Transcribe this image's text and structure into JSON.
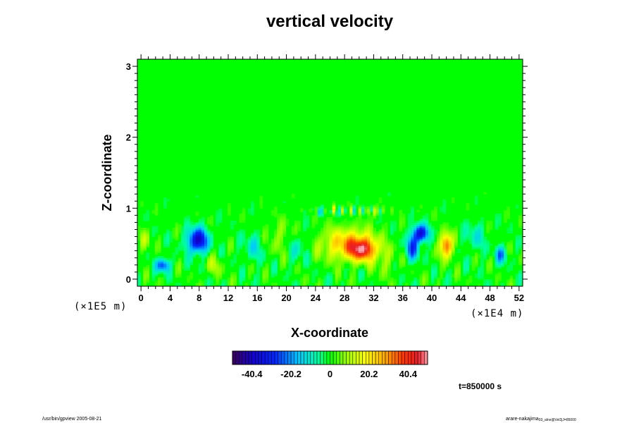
{
  "chart_data": {
    "type": "heatmap",
    "title": "vertical velocity",
    "xlabel": "X-coordinate",
    "ylabel": "Z-coordinate",
    "x_scale_label": "(×1E4 m)",
    "y_scale_label": "(×1E5 m)",
    "x_ticks": [
      "0",
      "4",
      "8",
      "12",
      "16",
      "20",
      "24",
      "28",
      "32",
      "36",
      "40",
      "44",
      "48",
      "52"
    ],
    "y_ticks": [
      "0",
      "1",
      "2",
      "3"
    ],
    "xlim": [
      -0.5,
      52.5
    ],
    "ylim": [
      -0.1,
      3.1
    ],
    "colorbar": {
      "min": -50.5,
      "max": 50.5,
      "ticks": [
        "-40.4",
        "-20.2",
        "0",
        "20.2",
        "40.4"
      ]
    },
    "features": [
      {
        "x": 7.8,
        "z": 0.55,
        "amp": -40,
        "rx": 1.4,
        "rz": 0.17
      },
      {
        "x": 3.0,
        "z": 0.2,
        "amp": -28,
        "rx": 0.9,
        "rz": 0.09
      },
      {
        "x": 28.5,
        "z": 0.5,
        "amp": 26,
        "rx": 3.6,
        "rz": 0.22
      },
      {
        "x": 30.5,
        "z": 0.42,
        "amp": 34,
        "rx": 1.8,
        "rz": 0.15
      },
      {
        "x": 38.5,
        "z": 0.65,
        "amp": -38,
        "rx": 1.0,
        "rz": 0.12
      },
      {
        "x": 37.3,
        "z": 0.45,
        "amp": -26,
        "rx": 0.9,
        "rz": 0.18
      },
      {
        "x": 42.0,
        "z": 0.48,
        "amp": 38,
        "rx": 0.8,
        "rz": 0.17
      },
      {
        "x": 49.5,
        "z": 0.35,
        "amp": -20,
        "rx": 0.8,
        "rz": 0.12
      },
      {
        "x": 15.5,
        "z": 0.45,
        "amp": -10,
        "rx": 1.5,
        "rz": 0.2
      },
      {
        "x": 19.0,
        "z": 0.6,
        "amp": 7,
        "rx": 2.0,
        "rz": 0.25
      },
      {
        "x": 21.5,
        "z": 0.45,
        "amp": -9,
        "rx": 1.3,
        "rz": 0.2
      },
      {
        "x": 33.5,
        "z": 0.25,
        "amp": 7,
        "rx": 1.5,
        "rz": 0.2
      },
      {
        "x": 24.5,
        "z": 0.95,
        "amp": -18,
        "rx": 0.3,
        "rz": 0.06
      },
      {
        "x": 26.5,
        "z": 1.0,
        "amp": 12,
        "rx": 0.4,
        "rz": 0.05
      },
      {
        "x": 32.0,
        "z": 0.95,
        "amp": 10,
        "rx": 0.6,
        "rz": 0.08
      },
      {
        "x": 10.0,
        "z": 0.2,
        "amp": 9,
        "rx": 1.2,
        "rz": 0.15
      },
      {
        "x": 46.0,
        "z": 0.6,
        "amp": -9,
        "rx": 1.5,
        "rz": 0.2
      },
      {
        "x": 0.5,
        "z": 0.55,
        "amp": 9,
        "rx": 0.8,
        "rz": 0.15
      }
    ],
    "time_label": "t=850000 s"
  },
  "footer": {
    "left": "/usr/bin/gpview 2005-08-21",
    "right": "arare-nakajima",
    "right_sub": "03_alne@Vel2jJ=85000"
  }
}
